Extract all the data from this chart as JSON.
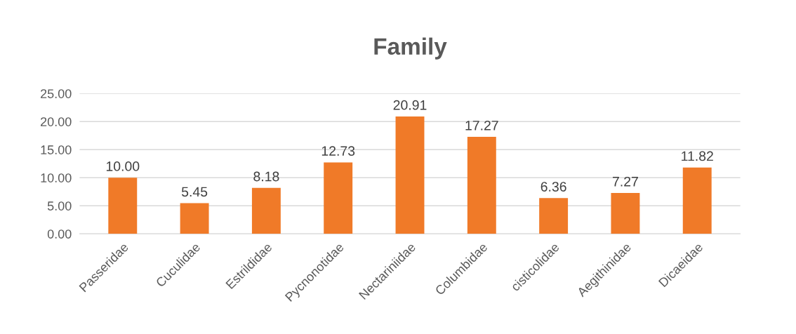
{
  "chart_data": {
    "type": "bar",
    "title": "Family",
    "categories": [
      "Passeridae",
      "Cuculidae",
      "Estrildidae",
      "Pycnonotidae",
      "Nectariniidae",
      "Columbidae",
      "cisticolidae",
      "Aegithinidae",
      "Dicaeidae"
    ],
    "values": [
      10.0,
      5.45,
      8.18,
      12.73,
      20.91,
      17.27,
      6.36,
      7.27,
      11.82
    ],
    "value_labels": [
      "10.00",
      "5.45",
      "8.18",
      "12.73",
      "20.91",
      "17.27",
      "6.36",
      "7.27",
      "11.82"
    ],
    "color": "#f07a28",
    "ylim": [
      0,
      25
    ],
    "yticks": [
      {
        "value": 0,
        "label": "0.00"
      },
      {
        "value": 5,
        "label": "5.00"
      },
      {
        "value": 10,
        "label": "10.00"
      },
      {
        "value": 15,
        "label": "15.00"
      },
      {
        "value": 20,
        "label": "20.00"
      },
      {
        "value": 25,
        "label": "25.00"
      }
    ],
    "grid": "y"
  }
}
